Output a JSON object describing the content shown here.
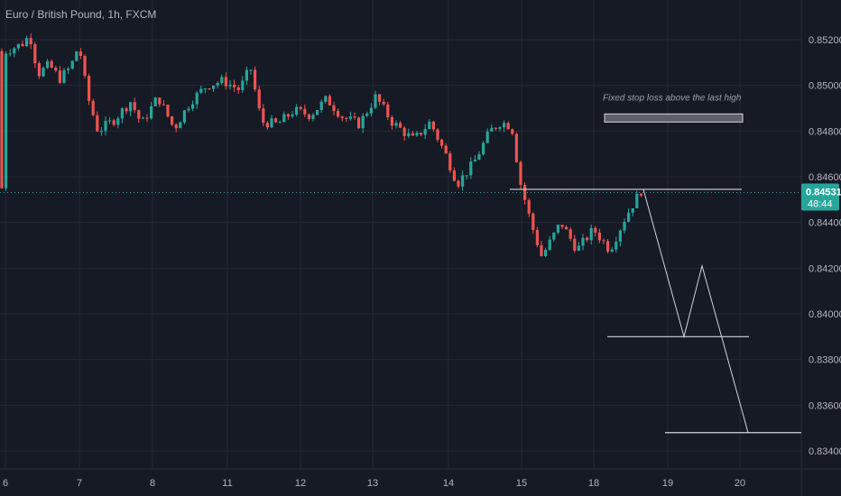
{
  "header": {
    "title": "Euro / British Pound, 1h, FXCM"
  },
  "chart_data": {
    "type": "candlestick",
    "title": "Euro / British Pound, 1h, FXCM",
    "symbol": "Euro / British Pound",
    "interval": "1h",
    "source": "FXCM",
    "x_tick_labels": [
      "6",
      "7",
      "8",
      "11",
      "12",
      "13",
      "14",
      "15",
      "18",
      "19",
      "20"
    ],
    "y_tick_labels": [
      "0.85200",
      "0.85000",
      "0.84800",
      "0.84600",
      "0.84400",
      "0.84200",
      "0.84000",
      "0.83800",
      "0.83600",
      "0.83400"
    ],
    "ylim": [
      0.8332,
      0.8528
    ],
    "grid": true,
    "last_price": "0.84531",
    "last_price_value": 0.84531,
    "countdown": "48:44",
    "annotation": "Fixed stop loss above the last high",
    "price_path": [
      {
        "day": 6.0,
        "price": 0.8515
      },
      {
        "day": 6.3,
        "price": 0.8518
      },
      {
        "day": 6.45,
        "price": 0.8522
      },
      {
        "day": 6.6,
        "price": 0.8505
      },
      {
        "day": 6.8,
        "price": 0.8509
      },
      {
        "day": 7.0,
        "price": 0.8503
      },
      {
        "day": 7.2,
        "price": 0.8508
      },
      {
        "day": 7.35,
        "price": 0.8518
      },
      {
        "day": 7.5,
        "price": 0.8496
      },
      {
        "day": 7.7,
        "price": 0.848
      },
      {
        "day": 8.0,
        "price": 0.8485
      },
      {
        "day": 8.3,
        "price": 0.8493
      },
      {
        "day": 8.5,
        "price": 0.8483
      },
      {
        "day": 8.8,
        "price": 0.8495
      },
      {
        "day": 9.1,
        "price": 0.8481
      },
      {
        "day": 9.4,
        "price": 0.8493
      },
      {
        "day": 9.7,
        "price": 0.85
      },
      {
        "day": 10.0,
        "price": 0.8502
      },
      {
        "day": 10.3,
        "price": 0.8498
      },
      {
        "day": 10.5,
        "price": 0.8508
      },
      {
        "day": 10.7,
        "price": 0.8484
      },
      {
        "day": 11.0,
        "price": 0.8483
      },
      {
        "day": 11.3,
        "price": 0.8489
      },
      {
        "day": 11.6,
        "price": 0.8487
      },
      {
        "day": 11.9,
        "price": 0.8494
      },
      {
        "day": 12.2,
        "price": 0.8486
      },
      {
        "day": 12.5,
        "price": 0.8483
      },
      {
        "day": 12.8,
        "price": 0.8495
      },
      {
        "day": 13.1,
        "price": 0.8484
      },
      {
        "day": 13.5,
        "price": 0.8476
      },
      {
        "day": 13.8,
        "price": 0.8484
      },
      {
        "day": 14.1,
        "price": 0.8469
      },
      {
        "day": 14.3,
        "price": 0.8457
      },
      {
        "day": 14.6,
        "price": 0.8466
      },
      {
        "day": 14.9,
        "price": 0.848
      },
      {
        "day": 15.1,
        "price": 0.8484
      },
      {
        "day": 15.3,
        "price": 0.8482
      },
      {
        "day": 15.45,
        "price": 0.8458
      },
      {
        "day": 15.65,
        "price": 0.844
      },
      {
        "day": 15.85,
        "price": 0.8425
      },
      {
        "day": 16.2,
        "price": 0.844
      },
      {
        "day": 16.5,
        "price": 0.8428
      },
      {
        "day": 16.8,
        "price": 0.8437
      },
      {
        "day": 17.1,
        "price": 0.8428
      },
      {
        "day": 17.4,
        "price": 0.8443
      },
      {
        "day": 17.7,
        "price": 0.8455
      }
    ],
    "drawings": {
      "resistance_line_price": 0.84545,
      "stop_box_price_top": 0.84875,
      "stop_box_price_bottom": 0.84845,
      "target_level_1": 0.839,
      "target_level_2": 0.8348,
      "projection_path": [
        {
          "day": 17.75,
          "price": 0.84545
        },
        {
          "day": 19.2,
          "price": 0.839
        },
        {
          "day": 19.45,
          "price": 0.8421
        },
        {
          "day": 20.1,
          "price": 0.8348
        }
      ]
    },
    "colors": {
      "background": "#161a25",
      "grid": "#242832",
      "up": "#26a69a",
      "down": "#ef5350",
      "price_line": "#26a69a",
      "drawing": "#d1d4dc",
      "axis_text": "#b2b5be"
    }
  }
}
